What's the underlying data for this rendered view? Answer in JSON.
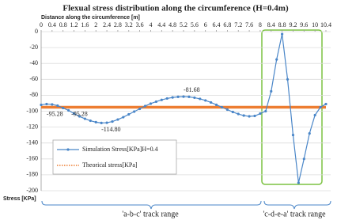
{
  "chart_data": {
    "type": "line",
    "title": "Flexual stress distribution along the circumference (H=0.4m)",
    "x_label": "Distance along the circumference [m]",
    "y_label": "Stress [KPa]",
    "xlim": [
      0,
      10.4
    ],
    "xticks": [
      0,
      0.4,
      0.8,
      1.2,
      1.6,
      2,
      2.4,
      2.8,
      3.2,
      3.6,
      4,
      4.4,
      4.8,
      5.2,
      5.6,
      6,
      6.4,
      6.8,
      7.2,
      7.6,
      8,
      8.4,
      8.8,
      9.2,
      9.6,
      10,
      10.4
    ],
    "ylim": [
      0,
      -200
    ],
    "yticks": [
      0,
      -20,
      -40,
      -60,
      -80,
      -100,
      -120,
      -140,
      -160,
      -180,
      -200
    ],
    "grid": true,
    "series": [
      {
        "name": "Simulation Stress[KPa]H=0.4",
        "color": "#4a86c8",
        "x": [
          0,
          0.2,
          0.4,
          0.6,
          0.8,
          1,
          1.2,
          1.4,
          1.6,
          1.8,
          2,
          2.2,
          2.4,
          2.6,
          2.8,
          3,
          3.2,
          3.4,
          3.6,
          3.8,
          4,
          4.2,
          4.4,
          4.6,
          4.8,
          5,
          5.2,
          5.4,
          5.6,
          5.8,
          6,
          6.2,
          6.4,
          6.6,
          6.8,
          7,
          7.2,
          7.4,
          7.6,
          7.8,
          8,
          8.2,
          8.4,
          8.6,
          8.8,
          9,
          9.2,
          9.4,
          9.6,
          9.8,
          10,
          10.2,
          10.4
        ],
        "values": [
          -92,
          -91,
          -91.5,
          -93,
          -96,
          -99,
          -103,
          -106.5,
          -109.5,
          -112,
          -113.8,
          -114.8,
          -114.5,
          -113,
          -110.5,
          -107.5,
          -104,
          -100.5,
          -97,
          -93.5,
          -90.5,
          -88,
          -85.8,
          -84,
          -82.7,
          -82,
          -81.7,
          -82,
          -83,
          -84.5,
          -86.5,
          -89,
          -92,
          -95,
          -98,
          -101,
          -103.5,
          -105.5,
          -106.5,
          -106,
          -103,
          -100,
          -75,
          -35,
          -3,
          -60,
          -130,
          -190,
          -160,
          -128,
          -105,
          -95,
          -91
        ]
      },
      {
        "name": "Theorical stress[KPa]",
        "color": "#ed7d31",
        "x": [
          0,
          10.4
        ],
        "values": [
          -95,
          -95
        ]
      }
    ],
    "annotations": [
      {
        "x": 0.2,
        "value": -95.28
      },
      {
        "x": 1.1,
        "value": -95.28
      },
      {
        "x": 2.2,
        "value": -114.8,
        "label": "-114.80"
      },
      {
        "x": 5.2,
        "value": -81.68
      }
    ],
    "ranges": [
      "'a-b-c' track range",
      "'c-d-e-a' track range"
    ]
  }
}
